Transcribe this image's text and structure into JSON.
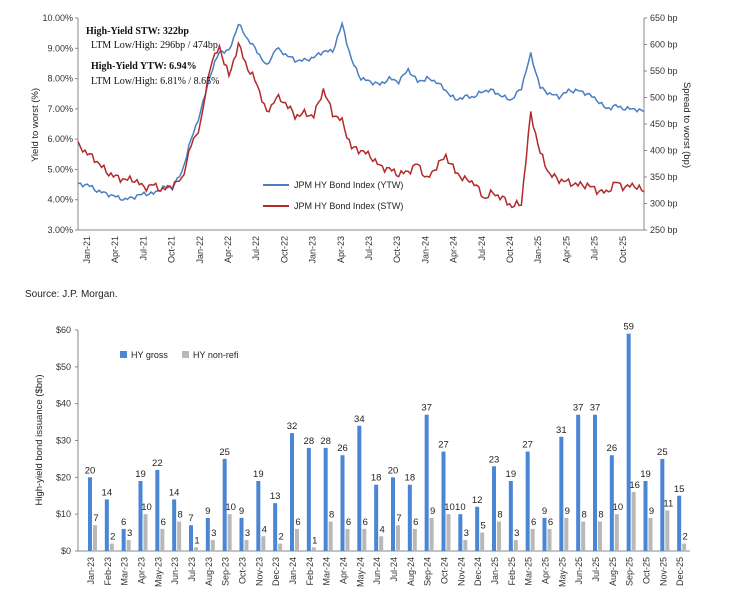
{
  "chart_data": [
    {
      "type": "line",
      "title": "",
      "ylabel_left": "Yield to worst (%)",
      "ylabel_right": "Spread to worst (bp)",
      "y_left_ticks": [
        "10.00%",
        "9.00%",
        "8.00%",
        "7.00%",
        "6.00%",
        "5.00%",
        "4.00%",
        "3.00%"
      ],
      "y_left_range": [
        3,
        10
      ],
      "y_right_ticks": [
        "650 bp",
        "600 bp",
        "550 bp",
        "500 bp",
        "450 bp",
        "400 bp",
        "350 bp",
        "300 bp",
        "250 bp"
      ],
      "y_right_range": [
        250,
        650
      ],
      "x_ticks": [
        "Jan-21",
        "Apr-21",
        "Jul-21",
        "Oct-21",
        "Jan-22",
        "Apr-22",
        "Jul-22",
        "Oct-22",
        "Jan-23",
        "Apr-23",
        "Jul-23",
        "Oct-23",
        "Jan-24",
        "Apr-24",
        "Jul-24",
        "Oct-24",
        "Jan-25",
        "Apr-25",
        "Jul-25",
        "Oct-25"
      ],
      "annotations": {
        "stw_label": "High-Yield STW: 322bp",
        "stw_range": "LTM Low/High: 296bp / 474bp",
        "ytw_label": "High-Yield YTW: 6.94%",
        "ytw_range": "LTM Low/High: 6.81% / 8.65%"
      },
      "legend": [
        {
          "name": "JPM HY Bond Index (YTW)",
          "color": "#4a7ec4"
        },
        {
          "name": "JPM HY Bond Index (STW)",
          "color": "#b22a2a"
        }
      ],
      "legend_position": "center-right",
      "series": [
        {
          "name": "JPM HY Bond Index (YTW)",
          "axis": "left",
          "color": "#4a7ec4",
          "x": [
            0,
            1,
            2,
            3,
            4,
            5,
            6,
            7,
            8,
            9,
            10,
            11,
            12,
            13,
            14,
            15,
            16,
            17,
            18,
            19,
            20,
            21,
            22,
            23,
            24,
            25,
            26,
            27,
            28,
            29,
            30,
            31,
            32,
            33,
            34,
            35,
            36,
            37,
            38,
            39,
            40,
            41,
            42,
            43,
            44,
            45,
            46,
            47,
            48,
            49,
            50,
            51,
            52,
            53,
            54,
            55,
            56,
            57,
            58,
            59,
            60
          ],
          "values": [
            4.5,
            4.5,
            4.3,
            4.2,
            4.1,
            4.0,
            4.1,
            4.2,
            4.2,
            4.4,
            4.4,
            4.9,
            6.0,
            6.9,
            8.1,
            8.9,
            8.9,
            9.8,
            9.3,
            8.9,
            8.4,
            9.0,
            8.8,
            8.6,
            8.6,
            8.7,
            8.9,
            8.9,
            9.8,
            8.6,
            8.0,
            7.9,
            7.8,
            8.0,
            7.9,
            8.3,
            7.9,
            8.0,
            7.9,
            7.6,
            7.3,
            7.4,
            7.4,
            7.6,
            7.6,
            7.4,
            7.3,
            7.7,
            8.8,
            7.7,
            7.5,
            7.4,
            7.6,
            7.6,
            7.5,
            7.3,
            7.0,
            7.1,
            7.0,
            7.0,
            6.9
          ]
        },
        {
          "name": "JPM HY Bond Index (STW)",
          "axis": "right",
          "color": "#b22a2a",
          "x": [
            0,
            1,
            2,
            3,
            4,
            5,
            6,
            7,
            8,
            9,
            10,
            11,
            12,
            13,
            14,
            15,
            16,
            17,
            18,
            19,
            20,
            21,
            22,
            23,
            24,
            25,
            26,
            27,
            28,
            29,
            30,
            31,
            32,
            33,
            34,
            35,
            36,
            37,
            38,
            39,
            40,
            41,
            42,
            43,
            44,
            45,
            46,
            47,
            48,
            49,
            50,
            51,
            52,
            53,
            54,
            55,
            56,
            57,
            58,
            59,
            60
          ],
          "values": [
            410,
            395,
            380,
            360,
            350,
            345,
            345,
            330,
            335,
            325,
            335,
            345,
            410,
            450,
            560,
            595,
            540,
            600,
            555,
            525,
            470,
            500,
            490,
            465,
            470,
            465,
            515,
            470,
            455,
            405,
            400,
            390,
            370,
            365,
            355,
            360,
            375,
            345,
            370,
            390,
            360,
            345,
            340,
            310,
            320,
            310,
            295,
            300,
            470,
            395,
            355,
            345,
            340,
            335,
            335,
            325,
            320,
            340,
            330,
            335,
            322
          ]
        }
      ]
    },
    {
      "type": "bar",
      "title": "",
      "ylabel": "High-yield bond issuance ($bn)",
      "y_ticks": [
        "$60",
        "$50",
        "$40",
        "$30",
        "$20",
        "$10",
        "$0"
      ],
      "ylim": [
        0,
        60
      ],
      "legend": [
        {
          "name": "HY gross",
          "color": "#4a86d4"
        },
        {
          "name": "HY non-refi",
          "color": "#b8b8b8"
        }
      ],
      "legend_position": "top-left",
      "categories": [
        "Jan-23",
        "Feb-23",
        "Mar-23",
        "Apr-23",
        "May-23",
        "Jun-23",
        "Jul-23",
        "Aug-23",
        "Sep-23",
        "Oct-23",
        "Nov-23",
        "Dec-23",
        "Jan-24",
        "Feb-24",
        "Mar-24",
        "Apr-24",
        "May-24",
        "Jun-24",
        "Jul-24",
        "Aug-24",
        "Sep-24",
        "Oct-24",
        "Nov-24",
        "Dec-24",
        "Jan-25",
        "Feb-25",
        "Mar-25",
        "Apr-25",
        "May-25",
        "Jun-25",
        "Jul-25",
        "Aug-25",
        "Sep-25",
        "Oct-25",
        "Nov-25",
        "Dec-25"
      ],
      "series": [
        {
          "name": "HY gross",
          "values": [
            20,
            14,
            6,
            19,
            22,
            14,
            7,
            9,
            25,
            9,
            19,
            13,
            32,
            28,
            28,
            26,
            34,
            18,
            20,
            18,
            37,
            27,
            10,
            12,
            23,
            19,
            27,
            9,
            31,
            37,
            37,
            26,
            59,
            19,
            25,
            15
          ]
        },
        {
          "name": "HY non-refi",
          "values": [
            7,
            2,
            3,
            10,
            6,
            8,
            1,
            3,
            10,
            3,
            4,
            2,
            6,
            1,
            8,
            6,
            6,
            4,
            7,
            6,
            9,
            10,
            3,
            5,
            8,
            3,
            6,
            6,
            9,
            8,
            8,
            10,
            16,
            9,
            11,
            2
          ]
        }
      ]
    }
  ],
  "source": "Source: J.P. Morgan."
}
